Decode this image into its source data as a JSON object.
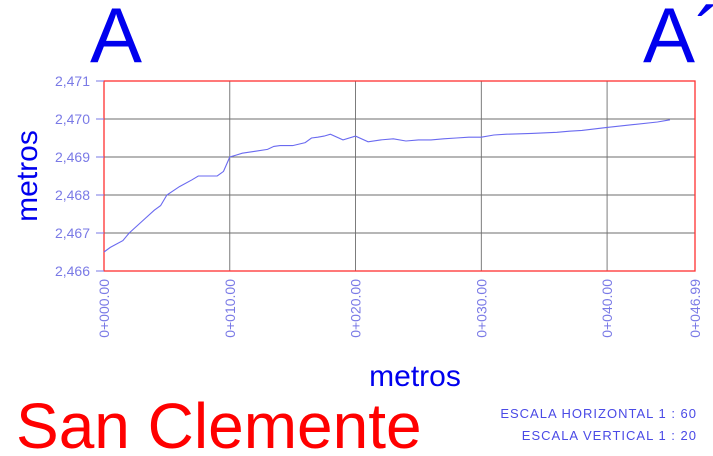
{
  "section": {
    "start_label": "A",
    "end_label": "A´"
  },
  "site_name": "San Clemente",
  "scale": {
    "horizontal": "ESCALA HORIZONTAL  1 : 60",
    "vertical": "ESCALA VERTICAL  1 : 20"
  },
  "colors": {
    "frame": "#ff3030",
    "grid": "#6e6e6e",
    "line": "#6a6af0",
    "ticks": "#7a7ae6",
    "title_blue": "#0000ee",
    "site_red": "#ff0000"
  },
  "chart_data": {
    "type": "line",
    "xlabel": "metros",
    "ylabel": "metros",
    "xlim": [
      0,
      46.99
    ],
    "ylim": [
      2466,
      2471
    ],
    "x_ticks": [
      0,
      10,
      20,
      30,
      40,
      46.99
    ],
    "x_tick_labels": [
      "0+000.00",
      "0+010.00",
      "0+020.00",
      "0+030.00",
      "0+040.00",
      "0+046.99"
    ],
    "y_ticks": [
      2466,
      2467,
      2468,
      2469,
      2470,
      2471
    ],
    "y_tick_labels": [
      "2,466",
      "2,467",
      "2,468",
      "2,469",
      "2,470",
      "2,471"
    ],
    "grid": true,
    "series": [
      {
        "x": [
          0,
          0.5,
          1.5,
          2,
          3,
          4,
          4.5,
          5,
          6,
          7,
          7.5,
          8,
          9,
          9.5,
          10,
          10.5,
          11,
          12,
          13,
          13.5,
          14,
          15,
          16,
          16.5,
          17,
          17.5,
          18,
          19,
          20,
          21,
          22,
          23,
          24,
          25,
          26,
          27,
          28,
          29,
          30,
          31,
          32,
          34,
          36,
          37,
          38,
          40,
          42,
          44,
          45
        ],
        "y": [
          2466.5,
          2466.62,
          2466.8,
          2467.0,
          2467.3,
          2467.6,
          2467.72,
          2468.0,
          2468.22,
          2468.4,
          2468.5,
          2468.5,
          2468.5,
          2468.62,
          2469.0,
          2469.05,
          2469.1,
          2469.15,
          2469.2,
          2469.28,
          2469.3,
          2469.3,
          2469.38,
          2469.5,
          2469.52,
          2469.55,
          2469.6,
          2469.45,
          2469.55,
          2469.4,
          2469.45,
          2469.48,
          2469.42,
          2469.45,
          2469.45,
          2469.48,
          2469.5,
          2469.52,
          2469.52,
          2469.58,
          2469.6,
          2469.62,
          2469.65,
          2469.68,
          2469.7,
          2469.78,
          2469.85,
          2469.92,
          2469.98
        ]
      }
    ]
  }
}
